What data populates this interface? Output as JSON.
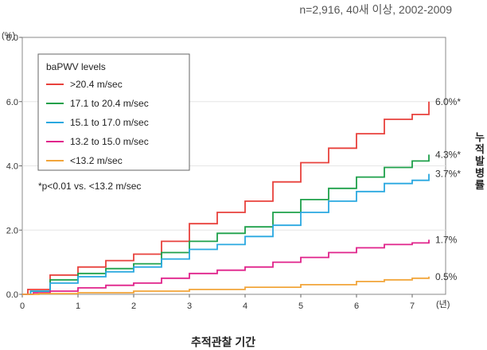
{
  "caption": "n=2,916, 40새 이상, 2002-2009",
  "chart_data": {
    "type": "line",
    "xlabel": "추적관찰 기간",
    "ylabel": "누적발병률",
    "x_unit": "(년)",
    "y_unit": "(%)",
    "xlim": [
      0,
      7.6
    ],
    "ylim": [
      0,
      8.0
    ],
    "x_ticks": [
      "0",
      "1",
      "2",
      "3",
      "4",
      "5",
      "6",
      "7"
    ],
    "y_ticks": [
      "0.0",
      "2.0",
      "4.0",
      "6.0",
      "8.0"
    ],
    "legend_title": "baPWV levels",
    "legend_position": "top-left",
    "annotation": "*p<0.01 vs. <13.2 m/sec",
    "series": [
      {
        "name": ">20.4 m/sec",
        "color": "#e8413c",
        "end_label": "6.0%*",
        "x": [
          0.1,
          0.5,
          1.0,
          1.5,
          2.0,
          2.5,
          3.0,
          3.5,
          4.0,
          4.5,
          5.0,
          5.5,
          6.0,
          6.5,
          7.0,
          7.3
        ],
        "y": [
          0.15,
          0.6,
          0.85,
          1.05,
          1.25,
          1.65,
          2.2,
          2.55,
          2.9,
          3.5,
          4.1,
          4.55,
          5.0,
          5.45,
          5.6,
          6.0
        ]
      },
      {
        "name": "17.1 to 20.4 m/sec",
        "color": "#1ea04a",
        "end_label": "4.3%*",
        "x": [
          0.15,
          0.5,
          1.0,
          1.5,
          2.0,
          2.5,
          3.0,
          3.5,
          4.0,
          4.5,
          5.0,
          5.5,
          6.0,
          6.5,
          7.0,
          7.3
        ],
        "y": [
          0.1,
          0.45,
          0.65,
          0.8,
          0.95,
          1.3,
          1.65,
          1.9,
          2.1,
          2.55,
          2.95,
          3.3,
          3.65,
          3.95,
          4.15,
          4.35
        ]
      },
      {
        "name": "15.1 to 17.0 m/sec",
        "color": "#29a8e0",
        "end_label": "3.7%*",
        "x": [
          0.15,
          0.5,
          1.0,
          1.5,
          2.0,
          2.5,
          3.0,
          3.5,
          4.0,
          4.5,
          5.0,
          5.5,
          6.0,
          6.5,
          7.0,
          7.3
        ],
        "y": [
          0.1,
          0.35,
          0.55,
          0.7,
          0.85,
          1.1,
          1.4,
          1.55,
          1.8,
          2.15,
          2.55,
          2.9,
          3.2,
          3.45,
          3.55,
          3.75
        ]
      },
      {
        "name": "13.2 to 15.0 m/sec",
        "color": "#e0238b",
        "end_label": "1.7%",
        "x": [
          0.2,
          0.5,
          1.0,
          1.5,
          2.0,
          2.5,
          3.0,
          3.5,
          4.0,
          4.5,
          5.0,
          5.5,
          6.0,
          6.5,
          7.0,
          7.3
        ],
        "y": [
          0.05,
          0.1,
          0.2,
          0.28,
          0.35,
          0.5,
          0.65,
          0.75,
          0.85,
          1.0,
          1.15,
          1.3,
          1.45,
          1.55,
          1.6,
          1.7
        ]
      },
      {
        "name": "<13.2 m/sec",
        "color": "#f2a53a",
        "end_label": "0.5%",
        "x": [
          0.3,
          1.0,
          2.0,
          3.0,
          4.0,
          5.0,
          6.0,
          6.5,
          7.0,
          7.3
        ],
        "y": [
          0.02,
          0.05,
          0.1,
          0.15,
          0.22,
          0.3,
          0.4,
          0.45,
          0.5,
          0.55
        ]
      }
    ]
  }
}
